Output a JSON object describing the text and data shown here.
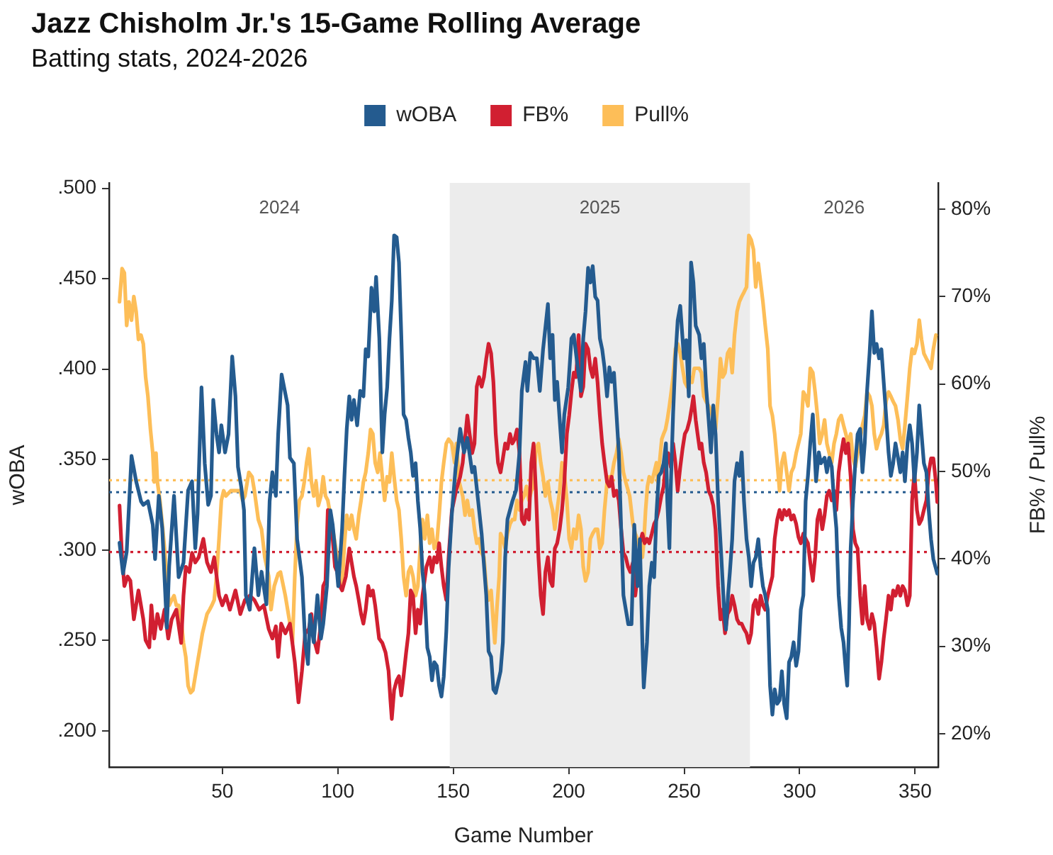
{
  "chart_data": {
    "type": "line",
    "title": "Jazz Chisholm Jr.'s 15-Game Rolling Average",
    "subtitle": "Batting stats, 2024-2026",
    "xlabel": "Game Number",
    "ylabel": "wOBA",
    "y2label": "FB% / Pull%",
    "xlim": [
      1,
      360
    ],
    "xticks": [
      50,
      100,
      150,
      200,
      250,
      300,
      350
    ],
    "ylim": [
      0.18,
      0.503
    ],
    "yticks": [
      {
        "value": 0.2,
        "label": ".200"
      },
      {
        "value": 0.25,
        "label": ".250"
      },
      {
        "value": 0.3,
        "label": ".300"
      },
      {
        "value": 0.35,
        "label": ".350"
      },
      {
        "value": 0.4,
        "label": ".400"
      },
      {
        "value": 0.45,
        "label": ".450"
      },
      {
        "value": 0.5,
        "label": ".500"
      }
    ],
    "y2lim": [
      16.2,
      83
    ],
    "y2ticks": [
      {
        "value": 20,
        "label": "20%"
      },
      {
        "value": 30,
        "label": "30%"
      },
      {
        "value": 40,
        "label": "40%"
      },
      {
        "value": 50,
        "label": "50%"
      },
      {
        "value": 60,
        "label": "60%"
      },
      {
        "value": 70,
        "label": "70%"
      },
      {
        "value": 80,
        "label": "80%"
      }
    ],
    "legend": "top",
    "marker": "none",
    "annotations": [
      "2024",
      "2026"
    ],
    "bands": [
      {
        "axis": "x",
        "from": 148.5,
        "to": 278.5,
        "label": "2025",
        "color": "#ececec"
      }
    ],
    "ref_lines": [
      {
        "axis": "y",
        "value": 0.332,
        "color": "#245b8f",
        "line_style": "dotted"
      },
      {
        "axis": "y2",
        "value": 49.0,
        "color": "#fdbe58",
        "line_style": "dotted"
      },
      {
        "axis": "y2",
        "value": 40.8,
        "color": "#d11f31",
        "line_style": "dotted"
      }
    ],
    "series": [
      {
        "name": "wOBA",
        "color": "#245b8f",
        "x": [
          5.5,
          7,
          8.6,
          10.7,
          12.7,
          14.8,
          15.8,
          17.8,
          19.9,
          20.9,
          22.5,
          24,
          26,
          27,
          29.1,
          31.1,
          33.2,
          35.2,
          36.9,
          38.3,
          39.3,
          41,
          42.4,
          43.9,
          45.1,
          46.1,
          47.5,
          48.6,
          49.6,
          51.2,
          52.7,
          54.3,
          55.7,
          56.8,
          58.2,
          59.4,
          60.2,
          61.9,
          63.9,
          65.6,
          67,
          69.1,
          70.5,
          71.7,
          73.2,
          74.2,
          75.7,
          78.3,
          79.3,
          81,
          82.4,
          84.5,
          85.9,
          87.1,
          88,
          89.6,
          91.2,
          92.7,
          93.7,
          95.3,
          96.8,
          97.8,
          98.8,
          100.2,
          101.9,
          102.9,
          103.9,
          105,
          106,
          107,
          108.4,
          109.7,
          111.1,
          112.1,
          113.2,
          114.6,
          115.8,
          116.6,
          118,
          119.3,
          120.3,
          121.4,
          122.4,
          123.4,
          124.4,
          125.5,
          126.5,
          127.5,
          128.5,
          129.6,
          130.6,
          131.6,
          132.6,
          133.7,
          134.7,
          135.7,
          136.7,
          137.7,
          138.8,
          139.8,
          140.8,
          141.8,
          142.9,
          143.9,
          144.9,
          145.9,
          147,
          148,
          149.4,
          151,
          153,
          154.7,
          156.1,
          158.2,
          159.2,
          160.8,
          162.3,
          164.3,
          165.3,
          166.4,
          167.4,
          168.4,
          170.5,
          171.5,
          172.5,
          173.5,
          175.6,
          177.2,
          178.7,
          179.7,
          181.3,
          182.1,
          183.4,
          184.8,
          186.2,
          187.5,
          188.9,
          191,
          192,
          193,
          194,
          195,
          196.1,
          197.1,
          198.1,
          199.8,
          201.2,
          202.2,
          203.9,
          205.3,
          206.3,
          207.3,
          208.4,
          209.4,
          210.4,
          211.5,
          212.5,
          213.5,
          214.5,
          215.5,
          216.6,
          217.6,
          218.6,
          219.6,
          220.7,
          221.7,
          222.7,
          223.7,
          225.8,
          227.2,
          228.4,
          229.8,
          230.8,
          231.9,
          232.5,
          233.9,
          234.9,
          236,
          237,
          238,
          239,
          240.1,
          241.1,
          242.1,
          242.7,
          243.6,
          244.2,
          245.2,
          246.2,
          247.2,
          248.3,
          249.3,
          249.9,
          250.9,
          252,
          253,
          254,
          255,
          256.5,
          257.5,
          258.5,
          259.5,
          260.6,
          261.6,
          262.6,
          263.6,
          264.7,
          266.1,
          267.3,
          268.1,
          269,
          269.8,
          270.8,
          271.8,
          272.9,
          273.9,
          274.9,
          275.9,
          277,
          278,
          279,
          280,
          281,
          282.1,
          283.1,
          284.1,
          285.1,
          286.2,
          287.2,
          288.2,
          289.2,
          290.3,
          291.3,
          292.3,
          293.3,
          294.4,
          295.4,
          296.4,
          297.4,
          298.5,
          299.5,
          300.5,
          301.6,
          302.6,
          303.6,
          304.6,
          305.7,
          306.3,
          307.1,
          308.3,
          309.2,
          310.8,
          311.8,
          312.8,
          313.9,
          314.9,
          315.9,
          316.9,
          318,
          319,
          320,
          320.6,
          321.4,
          322.1,
          323.1,
          324.1,
          325.1,
          326.2,
          327.2,
          328.2,
          329.2,
          330.3,
          331.3,
          332.3,
          333.3,
          334.4,
          335.4,
          336.4,
          337.4,
          338.5,
          339.5,
          340.5,
          341.5,
          342.6,
          343.6,
          344.6,
          345.6,
          346.7,
          347.7,
          348.7,
          349.7,
          350.8,
          351.8,
          352.8,
          353.8,
          354.9,
          355.9,
          356.9,
          357.9,
          359.6
        ],
        "values": [
          0.304,
          0.287,
          0.299,
          0.352,
          0.338,
          0.327,
          0.325,
          0.327,
          0.314,
          0.295,
          0.33,
          0.312,
          0.257,
          0.291,
          0.33,
          0.285,
          0.293,
          0.333,
          0.338,
          0.301,
          0.32,
          0.39,
          0.348,
          0.325,
          0.33,
          0.383,
          0.364,
          0.354,
          0.369,
          0.354,
          0.364,
          0.407,
          0.385,
          0.346,
          0.335,
          0.322,
          0.275,
          0.267,
          0.301,
          0.275,
          0.288,
          0.27,
          0.327,
          0.343,
          0.33,
          0.364,
          0.397,
          0.38,
          0.351,
          0.348,
          0.306,
          0.285,
          0.249,
          0.237,
          0.264,
          0.249,
          0.275,
          0.251,
          0.259,
          0.28,
          0.322,
          0.314,
          0.301,
          0.28,
          0.312,
          0.341,
          0.367,
          0.385,
          0.372,
          0.383,
          0.369,
          0.388,
          0.385,
          0.411,
          0.407,
          0.445,
          0.432,
          0.451,
          0.417,
          0.354,
          0.375,
          0.39,
          0.417,
          0.438,
          0.474,
          0.473,
          0.459,
          0.419,
          0.375,
          0.372,
          0.362,
          0.354,
          0.341,
          0.348,
          0.327,
          0.312,
          0.288,
          0.275,
          0.246,
          0.241,
          0.228,
          0.238,
          0.236,
          0.225,
          0.219,
          0.23,
          0.255,
          0.29,
          0.32,
          0.345,
          0.367,
          0.354,
          0.362,
          0.343,
          0.346,
          0.327,
          0.309,
          0.275,
          0.244,
          0.241,
          0.223,
          0.221,
          0.233,
          0.249,
          0.296,
          0.317,
          0.327,
          0.333,
          0.354,
          0.388,
          0.404,
          0.388,
          0.409,
          0.406,
          0.406,
          0.388,
          0.411,
          0.436,
          0.406,
          0.419,
          0.383,
          0.393,
          0.372,
          0.354,
          0.375,
          0.39,
          0.417,
          0.419,
          0.401,
          0.388,
          0.417,
          0.432,
          0.456,
          0.448,
          0.457,
          0.44,
          0.438,
          0.417,
          0.411,
          0.401,
          0.385,
          0.401,
          0.393,
          0.398,
          0.375,
          0.354,
          0.312,
          0.275,
          0.259,
          0.259,
          0.314,
          0.28,
          0.306,
          0.249,
          0.224,
          0.249,
          0.28,
          0.293,
          0.285,
          0.32,
          0.341,
          0.343,
          0.348,
          0.359,
          0.327,
          0.301,
          0.335,
          0.375,
          0.406,
          0.427,
          0.435,
          0.417,
          0.406,
          0.416,
          0.385,
          0.459,
          0.448,
          0.424,
          0.419,
          0.406,
          0.414,
          0.39,
          0.372,
          0.354,
          0.38,
          0.364,
          0.327,
          0.296,
          0.267,
          0.256,
          0.275,
          0.288,
          0.306,
          0.338,
          0.348,
          0.341,
          0.354,
          0.327,
          0.306,
          0.296,
          0.28,
          0.293,
          0.296,
          0.306,
          0.291,
          0.28,
          0.275,
          0.267,
          0.225,
          0.209,
          0.223,
          0.215,
          0.217,
          0.233,
          0.215,
          0.207,
          0.238,
          0.241,
          0.249,
          0.236,
          0.244,
          0.267,
          0.275,
          0.327,
          0.341,
          0.359,
          0.375,
          0.359,
          0.338,
          0.354,
          0.348,
          0.351,
          0.343,
          0.351,
          0.346,
          0.327,
          0.312,
          0.275,
          0.257,
          0.249,
          0.233,
          0.225,
          0.259,
          0.301,
          0.327,
          0.348,
          0.364,
          0.367,
          0.343,
          0.359,
          0.388,
          0.409,
          0.432,
          0.409,
          0.414,
          0.406,
          0.411,
          0.393,
          0.375,
          0.354,
          0.341,
          0.348,
          0.359,
          0.351,
          0.343,
          0.354,
          0.338,
          0.359,
          0.369,
          0.359,
          0.338,
          0.354,
          0.38,
          0.364,
          0.348,
          0.343,
          0.322,
          0.306,
          0.295,
          0.287
        ]
      },
      {
        "name": "FB%",
        "color": "#d11f31",
        "axis": "y2",
        "x": [
          5.5,
          6.6,
          7.6,
          9,
          10.2,
          11.7,
          13.7,
          15.8,
          16.8,
          18.4,
          19.3,
          20.5,
          21.9,
          23.4,
          25,
          26.6,
          28.1,
          30.1,
          32.2,
          33.2,
          34.2,
          35.7,
          36.9,
          38.3,
          39.8,
          41.8,
          43.4,
          45.1,
          46.5,
          48.6,
          50,
          51.6,
          53.3,
          55.7,
          57.8,
          59.8,
          61.9,
          63.9,
          66,
          68,
          70.1,
          71.7,
          73.2,
          74.2,
          75.5,
          77.3,
          79.3,
          81.4,
          83,
          84.5,
          85.9,
          87.5,
          88.6,
          89.6,
          91.2,
          92.7,
          93.7,
          94.7,
          95.7,
          96.8,
          97.8,
          98.8,
          99.8,
          100.9,
          101.9,
          103.5,
          105,
          106,
          107,
          108,
          109.1,
          110.1,
          111.1,
          112.1,
          113.2,
          114.2,
          115.2,
          116.2,
          117.9,
          119.3,
          120.7,
          122,
          122.8,
          123.4,
          124.4,
          125.5,
          126.5,
          127.5,
          128.5,
          129.6,
          130.6,
          131.6,
          132.6,
          133.7,
          134.7,
          135.7,
          136.7,
          138.4,
          139.8,
          140.8,
          141.8,
          142.9,
          143.9,
          144.9,
          145.9,
          147,
          148,
          149.4,
          151.2,
          153,
          154.1,
          155.1,
          156.1,
          157.1,
          158.2,
          159.2,
          160.2,
          161.2,
          162.3,
          163.3,
          164.3,
          165.3,
          166.4,
          167.4,
          168.4,
          169.4,
          170.5,
          171.5,
          172.5,
          173.5,
          174.6,
          175.6,
          176.6,
          177.6,
          178.7,
          179.7,
          180.7,
          181.7,
          182.8,
          183.8,
          184.8,
          185.8,
          186.9,
          187.9,
          188.9,
          189.9,
          191,
          192,
          193,
          194,
          195,
          196.1,
          197.1,
          198.1,
          199.2,
          200.2,
          201.2,
          202.2,
          203.2,
          204.3,
          205.3,
          206.3,
          207.3,
          208.4,
          209.4,
          210.4,
          211.5,
          212.5,
          213.5,
          214.5,
          215.5,
          216.6,
          217.6,
          218.6,
          219.6,
          220.7,
          221.7,
          222.7,
          223.7,
          224.7,
          225.7,
          226.7,
          227.8,
          228.8,
          229.8,
          230.8,
          231.9,
          232.9,
          233.9,
          234.9,
          236,
          237,
          238,
          239,
          240.1,
          241.1,
          242.1,
          243.1,
          244.2,
          245.2,
          246.2,
          247.2,
          248.3,
          249.3,
          250.3,
          251.3,
          252.4,
          253.4,
          254,
          255,
          255.8,
          256.7,
          257.5,
          258.5,
          259.5,
          260.6,
          261.6,
          262.6,
          263.6,
          264.7,
          265.7,
          266.7,
          267.7,
          268.8,
          269.8,
          270.8,
          271.8,
          272.9,
          273.9,
          274.9,
          275.9,
          277,
          278,
          279,
          280,
          281,
          282.1,
          283.1,
          284.1,
          285.1,
          286.2,
          287.2,
          288.2,
          289.2,
          290.3,
          291.3,
          292.3,
          293.3,
          294.4,
          295.4,
          296.4,
          297.4,
          298.5,
          299.5,
          300.5,
          301.6,
          302.6,
          303.6,
          304.6,
          305.7,
          306.7,
          307.7,
          308.7,
          309.8,
          310.8,
          311.8,
          312.8,
          313.9,
          314.9,
          315.9,
          316.9,
          318,
          319,
          320,
          321,
          322.1,
          323.1,
          324.1,
          325.1,
          326.2,
          327.2,
          328.2,
          329.2,
          330.3,
          331.3,
          332.3,
          333.3,
          334.4,
          335.4,
          336.4,
          337.4,
          338.5,
          339.5,
          340.5,
          341.5,
          342.6,
          343.6,
          344.6,
          345.6,
          346.7,
          347.7,
          348.7,
          349.7,
          350.8,
          351.8,
          352.8,
          353.8,
          354.9,
          355.9,
          356.9,
          357.9,
          359,
          359.6
        ],
        "values": [
          46.1,
          40.2,
          36.9,
          38,
          37.5,
          33.1,
          36.4,
          33.1,
          30.7,
          29.9,
          34.7,
          30.9,
          33.7,
          32,
          34.2,
          30.9,
          33.1,
          34.2,
          30.4,
          35.8,
          39.1,
          38.5,
          40.7,
          39.6,
          40.2,
          42.3,
          39.6,
          38.5,
          40.2,
          35.8,
          34.7,
          35.8,
          34.2,
          36.4,
          33.7,
          35.3,
          35.8,
          35.3,
          34.2,
          34.7,
          32,
          30.9,
          32.3,
          28.8,
          32.6,
          31.5,
          32.6,
          28.2,
          23.6,
          27.2,
          31.5,
          32,
          33.7,
          30.9,
          29.3,
          32.6,
          36.9,
          37.5,
          45.6,
          43.4,
          42.3,
          39.1,
          38.5,
          36.9,
          36.4,
          38,
          41.2,
          39.6,
          38,
          36.9,
          35.3,
          33.7,
          32.6,
          34.2,
          36.9,
          35.8,
          36.4,
          34.7,
          30.9,
          30.4,
          29.3,
          27.2,
          23.9,
          21.7,
          25,
          26.1,
          26.6,
          24.4,
          26.6,
          29.3,
          31.5,
          36.4,
          35.8,
          31.5,
          34.2,
          32.6,
          35.8,
          39.1,
          40.2,
          38.5,
          40.2,
          39.6,
          41.8,
          39.1,
          36.9,
          35.3,
          40.2,
          45.5,
          47.8,
          49.4,
          51,
          53.7,
          56.4,
          54.3,
          52.1,
          53.2,
          59.7,
          60.8,
          59.7,
          60.8,
          62.9,
          64.6,
          63.5,
          60.2,
          54.3,
          51,
          49.9,
          51.5,
          53.2,
          52.6,
          54.3,
          53.2,
          53.7,
          54.8,
          52.1,
          44.5,
          44,
          45.6,
          44.5,
          51,
          53.2,
          47.8,
          40.2,
          35.8,
          33.7,
          38.5,
          40.2,
          37.5,
          36.9,
          41.2,
          41.8,
          43.4,
          45.6,
          48.8,
          54.3,
          56.4,
          59.1,
          61.3,
          60.8,
          65.6,
          58.6,
          59.7,
          64.6,
          64,
          61.8,
          60.8,
          62.9,
          60.2,
          56.4,
          53.2,
          51,
          48.8,
          48.3,
          49.4,
          47.2,
          47.8,
          46.7,
          43.4,
          40.7,
          40.2,
          39.1,
          38.5,
          39.6,
          35.8,
          38,
          41.8,
          42.9,
          41.8,
          42.3,
          41.8,
          42.9,
          44,
          44.5,
          45.6,
          47.2,
          48.3,
          51,
          52.1,
          50.5,
          53.2,
          51,
          47.8,
          50.5,
          52.6,
          54.3,
          54.8,
          55.9,
          57.5,
          58.6,
          55.9,
          54.3,
          52.6,
          53.2,
          51,
          49.9,
          47.8,
          47.2,
          46.1,
          43.4,
          36.9,
          33.1,
          34.2,
          31.5,
          33.7,
          34.2,
          35.8,
          34.7,
          33.1,
          32.6,
          32.6,
          32,
          31.5,
          30.4,
          31.5,
          34.7,
          35.3,
          33.7,
          35.8,
          34.7,
          34.2,
          35.8,
          36.9,
          38,
          42.3,
          44.5,
          45.6,
          44.5,
          45.6,
          45,
          45.6,
          44.5,
          45,
          44,
          42.5,
          41.8,
          42.9,
          42.3,
          41.8,
          39.6,
          37.5,
          40.2,
          44.5,
          45.6,
          43.4,
          45,
          47.2,
          47.8,
          46.7,
          47.8,
          45.6,
          49.9,
          52.1,
          53.7,
          52.1,
          53.2,
          49.4,
          43.4,
          41.8,
          41.2,
          35.8,
          32.6,
          36.9,
          33.1,
          32,
          33.7,
          32.6,
          29.9,
          26.3,
          28.2,
          30.9,
          33.1,
          35.8,
          34.2,
          36.4,
          35.8,
          36.9,
          35.8,
          36.9,
          36.4,
          34.7,
          35.8,
          46.7,
          49.9,
          45.6,
          44,
          44.5,
          45.6,
          46.7,
          49.9,
          51.5,
          51.5,
          48.8,
          46.5
        ]
      },
      {
        "name": "Pull%",
        "color": "#fdbe58",
        "axis": "y2",
        "x": [
          5.5,
          6.6,
          7.6,
          8.6,
          9.6,
          10.7,
          11.7,
          12.7,
          13.7,
          14.8,
          15.8,
          16.8,
          17.8,
          18.9,
          19.9,
          20.5,
          21.3,
          21.9,
          23,
          24,
          25,
          26,
          27,
          28.1,
          29.1,
          30.1,
          31.1,
          32.2,
          33.2,
          34.2,
          35.2,
          36.3,
          37.3,
          38.3,
          39.3,
          40.4,
          41.4,
          42.4,
          43.4,
          44.5,
          45.5,
          46.5,
          47.5,
          48.6,
          49.6,
          50.6,
          51.6,
          53.7,
          55.7,
          57.8,
          58.8,
          59.8,
          61.5,
          62.9,
          63.9,
          65.6,
          67,
          68.4,
          70.1,
          71.1,
          72.5,
          74.2,
          75.2,
          77.3,
          79.3,
          80.4,
          81.4,
          82.4,
          83.4,
          84.5,
          85.5,
          86.5,
          87.5,
          88.6,
          89.6,
          90.6,
          91.6,
          92.7,
          93.7,
          94.7,
          95.7,
          96.8,
          97.8,
          98.8,
          99.8,
          100.9,
          101.9,
          102.9,
          103.9,
          105,
          106,
          107,
          108,
          109.1,
          110.1,
          111.1,
          112.1,
          113.2,
          114.2,
          115.2,
          116.2,
          117.3,
          118.3,
          119.3,
          120.3,
          121.4,
          122.4,
          123.4,
          124.4,
          125.5,
          126.5,
          127.5,
          128.5,
          129.6,
          130.6,
          131.6,
          132.6,
          133.7,
          134.7,
          135.7,
          136.7,
          137.7,
          138.8,
          139.8,
          140.8,
          141.8,
          142.9,
          143.9,
          144.9,
          145.9,
          147,
          148,
          149.4,
          150.6,
          151.4,
          152.6,
          154.1,
          155.1,
          156.1,
          157.1,
          158.2,
          159.2,
          160.2,
          161.2,
          162.3,
          163.3,
          164.3,
          165.3,
          166.4,
          167.4,
          168,
          169,
          169.9,
          170.5,
          171.5,
          172.5,
          173.5,
          174.6,
          175.6,
          176.6,
          177.6,
          178.7,
          179.7,
          180.7,
          181.7,
          182.8,
          183.8,
          184.8,
          185.8,
          186.9,
          187.9,
          188.9,
          189.9,
          191,
          192,
          193,
          194,
          195,
          196.1,
          197.1,
          198.1,
          199.2,
          200.2,
          201.2,
          202.2,
          203.2,
          204.3,
          205.3,
          206.3,
          207.3,
          208.4,
          209.4,
          210.4,
          211.5,
          212.5,
          213.5,
          214.5,
          215.5,
          216.6,
          217.6,
          218.6,
          219.6,
          220.7,
          221.7,
          222.7,
          223.7,
          224.7,
          226.4,
          227.8,
          228.8,
          229.8,
          230.8,
          231.9,
          232.5,
          233.3,
          234.1,
          234.9,
          236,
          237,
          238,
          238.6,
          239.5,
          240.3,
          241.1,
          241.9,
          242.7,
          243.6,
          244.4,
          245.2,
          246.2,
          247.2,
          248.3,
          249.3,
          250.3,
          251.3,
          252.4,
          253.4,
          254.4,
          255.4,
          256.5,
          257.5,
          258.5,
          259.5,
          260.6,
          261.6,
          262.6,
          263.6,
          264.7,
          265.7,
          266.7,
          267.7,
          268.8,
          269.8,
          270.8,
          271.8,
          272.9,
          273.9,
          274.9,
          275.9,
          277,
          278,
          279,
          280,
          281,
          282.1,
          283.1,
          284.1,
          285.1,
          286.2,
          287.2,
          288.2,
          289.2,
          290.3,
          291.3,
          292.3,
          293.3,
          294.4,
          295.4,
          296.4,
          297.4,
          298.5,
          299.5,
          300.5,
          301.6,
          302.6,
          303.6,
          304.6,
          305.7,
          306.7,
          307.7,
          308.7,
          309.8,
          310.8,
          311.8,
          312.8,
          313.9,
          314.9,
          315.9,
          316.9,
          318,
          319,
          320,
          321,
          322.1,
          323.1,
          324.1,
          325.1,
          326.2,
          327.2,
          328.2,
          329.2,
          330.3,
          331.3,
          332.3,
          333.3,
          334.4,
          335.4,
          336.4,
          337.4,
          338.5,
          339.5,
          340.5,
          341.5,
          342.6,
          343.6,
          344.6,
          345.6,
          346.7,
          347.7,
          348.7,
          349.7,
          350.8,
          351.8,
          352.8,
          353.8,
          354.9,
          355.9,
          356.9,
          357.9,
          359
        ],
        "values": [
          69.4,
          73.2,
          72.7,
          66.7,
          69.4,
          67.3,
          70,
          68.3,
          65.1,
          65.6,
          64.6,
          60.8,
          58.6,
          54.8,
          52.1,
          48.8,
          52.1,
          48.8,
          46.7,
          44,
          41.2,
          37.5,
          34.7,
          35.3,
          35.8,
          34.7,
          34.7,
          33.1,
          30.4,
          28.8,
          25.5,
          24.7,
          25,
          26.6,
          28.2,
          29.9,
          31.5,
          32.6,
          33.7,
          34.2,
          34.7,
          35.3,
          38,
          42.3,
          46.7,
          47.8,
          47.2,
          47.8,
          47.8,
          47.8,
          46.7,
          47.2,
          49.9,
          49.4,
          47.8,
          44.5,
          43.4,
          40.2,
          38,
          34.2,
          36.9,
          38.3,
          38.5,
          35.8,
          32.6,
          30.4,
          38,
          44,
          46.7,
          47.2,
          48.8,
          51,
          52.6,
          48.8,
          47.2,
          48.8,
          46.1,
          47.2,
          49.4,
          47.2,
          46.7,
          45,
          43.4,
          41.8,
          40.2,
          38,
          36.9,
          41.8,
          45,
          43.4,
          45,
          43.4,
          42.3,
          45,
          46.7,
          48.8,
          49.9,
          52.1,
          54.8,
          54.3,
          51,
          49.9,
          52.1,
          49.4,
          46.7,
          49.4,
          48.8,
          52.1,
          49.4,
          46.7,
          45.6,
          42.3,
          38,
          35.8,
          38.5,
          39.1,
          38,
          35.8,
          36.9,
          41.2,
          44.5,
          42.3,
          45,
          41.8,
          43.4,
          41.2,
          41.8,
          45,
          48.8,
          51,
          53.2,
          53.7,
          53.2,
          51,
          53.2,
          48.8,
          47.2,
          45,
          46.7,
          45,
          45.6,
          43.4,
          41.8,
          42.3,
          40.7,
          40.2,
          36.9,
          35.3,
          36.4,
          32.6,
          30.4,
          34.7,
          38,
          42.9,
          42.3,
          41.2,
          42.9,
          44,
          44.5,
          44.5,
          46.7,
          45.6,
          46.7,
          47.2,
          48.3,
          46.7,
          47.8,
          48.3,
          52.6,
          53.2,
          51,
          49.4,
          47.2,
          48.8,
          46.7,
          45.6,
          43.4,
          45.6,
          47.8,
          51,
          49.9,
          46.7,
          42.3,
          41.2,
          43.4,
          42.3,
          45,
          43.4,
          39.1,
          37.5,
          38.5,
          42.3,
          42.9,
          43.4,
          43.4,
          41.2,
          41.8,
          45.6,
          48.8,
          49.4,
          49.4,
          51,
          52.1,
          53.7,
          52.1,
          49.9,
          48.8,
          47.2,
          44,
          42.9,
          42.3,
          41.2,
          40.2,
          41.8,
          45.6,
          48.3,
          49.4,
          48.8,
          49.9,
          51,
          48.8,
          51.5,
          53.7,
          54.3,
          54.8,
          55.9,
          57.5,
          59.1,
          60.8,
          64,
          64.6,
          63.5,
          61.8,
          60.2,
          59.7,
          60.8,
          60.2,
          61.8,
          61.8,
          61.8,
          61.3,
          58.6,
          58,
          57.5,
          57,
          55.9,
          54.8,
          58.6,
          62.9,
          60.8,
          61.3,
          63.5,
          64,
          61.3,
          65.6,
          68.3,
          69.4,
          70,
          70.5,
          71.1,
          77,
          76.5,
          75.4,
          71.1,
          73.8,
          71.6,
          69.4,
          66.7,
          64,
          57.5,
          56.4,
          54.3,
          51,
          47.8,
          51,
          52.1,
          49.9,
          47.8,
          49.9,
          50.5,
          52.1,
          53.2,
          54.3,
          59.1,
          58.6,
          57.5,
          61.8,
          61.3,
          59.1,
          56.4,
          53.2,
          54.3,
          55.9,
          53.2,
          52.1,
          51,
          53.2,
          54.3,
          55.9,
          56.4,
          55.3,
          54.3,
          53.2,
          54.3,
          51.5,
          50.5,
          52.1,
          53.7,
          55.3,
          56.4,
          59.1,
          58.6,
          57.5,
          54.3,
          52.6,
          53.7,
          54.3,
          55.3,
          58,
          59.1,
          58.6,
          58,
          57.5,
          55.9,
          53.7,
          52.6,
          55.3,
          58.6,
          61.8,
          64,
          63.5,
          64.6,
          67.3,
          65.1,
          63.5,
          62.9,
          62.4,
          61.8,
          64,
          65.6
        ]
      }
    ]
  }
}
